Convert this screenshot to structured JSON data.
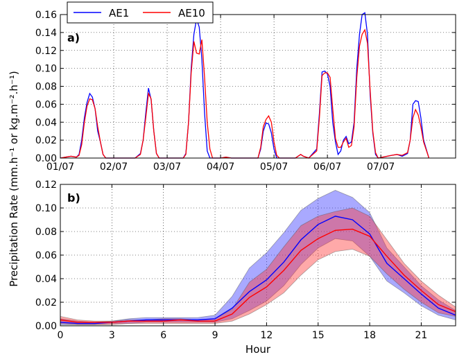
{
  "chart_data": [
    {
      "type": "line",
      "panel_label": "a)",
      "title": "",
      "xlabel": "",
      "ylabel": "Precipitation Rate (mm.h⁻¹ or kg.m⁻².h⁻¹)",
      "xlim": [
        0,
        7.4
      ],
      "ylim": [
        0,
        0.16
      ],
      "yticks": [
        "0.00",
        "0.02",
        "0.04",
        "0.06",
        "0.08",
        "0.10",
        "0.12",
        "0.14",
        "0.16"
      ],
      "xticks": [
        {
          "v": 0,
          "label": "01/07"
        },
        {
          "v": 1,
          "label": "02/07"
        },
        {
          "v": 2,
          "label": "03/07"
        },
        {
          "v": 3,
          "label": "04/07"
        },
        {
          "v": 4,
          "label": "05/07"
        },
        {
          "v": 5,
          "label": "06/07"
        },
        {
          "v": 6,
          "label": "07/07"
        }
      ],
      "grid": true,
      "legend": {
        "placement": "top-left",
        "entries": [
          {
            "name": "AE1",
            "color": "#0000ff"
          },
          {
            "name": "AE10",
            "color": "#ff0000"
          }
        ]
      },
      "series": [
        {
          "name": "AE1",
          "color": "#0000ff",
          "points": [
            [
              0,
              0
            ],
            [
              0.1,
              0.001
            ],
            [
              0.2,
              0.002
            ],
            [
              0.3,
              0.001
            ],
            [
              0.35,
              0.004
            ],
            [
              0.4,
              0.02
            ],
            [
              0.45,
              0.045
            ],
            [
              0.5,
              0.062
            ],
            [
              0.55,
              0.072
            ],
            [
              0.6,
              0.068
            ],
            [
              0.65,
              0.055
            ],
            [
              0.7,
              0.03
            ],
            [
              0.75,
              0.018
            ],
            [
              0.8,
              0.004
            ],
            [
              0.85,
              0
            ],
            [
              1.4,
              0
            ],
            [
              1.5,
              0.005
            ],
            [
              1.55,
              0.02
            ],
            [
              1.6,
              0.05
            ],
            [
              1.65,
              0.078
            ],
            [
              1.7,
              0.065
            ],
            [
              1.75,
              0.03
            ],
            [
              1.8,
              0.005
            ],
            [
              1.85,
              0
            ],
            [
              2.3,
              0
            ],
            [
              2.35,
              0.005
            ],
            [
              2.4,
              0.04
            ],
            [
              2.45,
              0.1
            ],
            [
              2.5,
              0.138
            ],
            [
              2.55,
              0.155
            ],
            [
              2.6,
              0.146
            ],
            [
              2.65,
              0.11
            ],
            [
              2.7,
              0.05
            ],
            [
              2.75,
              0.008
            ],
            [
              2.8,
              0
            ],
            [
              3.0,
              0
            ],
            [
              3.1,
              0.001
            ],
            [
              3.2,
              0
            ],
            [
              3.7,
              0
            ],
            [
              3.75,
              0.01
            ],
            [
              3.8,
              0.03
            ],
            [
              3.85,
              0.039
            ],
            [
              3.9,
              0.038
            ],
            [
              3.95,
              0.028
            ],
            [
              4.0,
              0.01
            ],
            [
              4.05,
              0
            ],
            [
              4.4,
              0
            ],
            [
              4.5,
              0.004
            ],
            [
              4.55,
              0.002
            ],
            [
              4.65,
              0
            ],
            [
              4.8,
              0.01
            ],
            [
              4.85,
              0.05
            ],
            [
              4.9,
              0.096
            ],
            [
              4.95,
              0.097
            ],
            [
              5.0,
              0.094
            ],
            [
              5.05,
              0.08
            ],
            [
              5.1,
              0.04
            ],
            [
              5.15,
              0.018
            ],
            [
              5.2,
              0.004
            ],
            [
              5.25,
              0.008
            ],
            [
              5.3,
              0.02
            ],
            [
              5.35,
              0.024
            ],
            [
              5.4,
              0.016
            ],
            [
              5.45,
              0.018
            ],
            [
              5.5,
              0.04
            ],
            [
              5.55,
              0.1
            ],
            [
              5.6,
              0.138
            ],
            [
              5.65,
              0.16
            ],
            [
              5.7,
              0.162
            ],
            [
              5.75,
              0.138
            ],
            [
              5.8,
              0.07
            ],
            [
              5.85,
              0.028
            ],
            [
              5.9,
              0.004
            ],
            [
              5.95,
              0
            ],
            [
              6.2,
              0.003
            ],
            [
              6.3,
              0.004
            ],
            [
              6.4,
              0.002
            ],
            [
              6.5,
              0.005
            ],
            [
              6.55,
              0.02
            ],
            [
              6.6,
              0.06
            ],
            [
              6.65,
              0.064
            ],
            [
              6.7,
              0.063
            ],
            [
              6.75,
              0.045
            ],
            [
              6.8,
              0.02
            ],
            [
              6.9,
              0
            ]
          ]
        },
        {
          "name": "AE10",
          "color": "#ff0000",
          "points": [
            [
              0,
              0
            ],
            [
              0.1,
              0.001
            ],
            [
              0.2,
              0.002
            ],
            [
              0.3,
              0.001
            ],
            [
              0.35,
              0.003
            ],
            [
              0.4,
              0.015
            ],
            [
              0.45,
              0.04
            ],
            [
              0.5,
              0.058
            ],
            [
              0.55,
              0.066
            ],
            [
              0.6,
              0.065
            ],
            [
              0.65,
              0.055
            ],
            [
              0.7,
              0.035
            ],
            [
              0.75,
              0.018
            ],
            [
              0.8,
              0.004
            ],
            [
              0.85,
              0
            ],
            [
              1.4,
              0
            ],
            [
              1.5,
              0.004
            ],
            [
              1.55,
              0.02
            ],
            [
              1.6,
              0.045
            ],
            [
              1.65,
              0.072
            ],
            [
              1.7,
              0.066
            ],
            [
              1.75,
              0.03
            ],
            [
              1.8,
              0.005
            ],
            [
              1.85,
              0
            ],
            [
              2.3,
              0
            ],
            [
              2.35,
              0.004
            ],
            [
              2.4,
              0.04
            ],
            [
              2.45,
              0.095
            ],
            [
              2.5,
              0.13
            ],
            [
              2.55,
              0.117
            ],
            [
              2.6,
              0.116
            ],
            [
              2.65,
              0.132
            ],
            [
              2.7,
              0.09
            ],
            [
              2.75,
              0.04
            ],
            [
              2.8,
              0.01
            ],
            [
              2.85,
              0
            ],
            [
              3.0,
              0
            ],
            [
              3.1,
              0.001
            ],
            [
              3.2,
              0
            ],
            [
              3.7,
              0
            ],
            [
              3.75,
              0.012
            ],
            [
              3.8,
              0.035
            ],
            [
              3.85,
              0.043
            ],
            [
              3.9,
              0.047
            ],
            [
              3.95,
              0.04
            ],
            [
              4.0,
              0.018
            ],
            [
              4.05,
              0.003
            ],
            [
              4.1,
              0
            ],
            [
              4.4,
              0
            ],
            [
              4.5,
              0.004
            ],
            [
              4.55,
              0.002
            ],
            [
              4.65,
              0
            ],
            [
              4.8,
              0.008
            ],
            [
              4.85,
              0.045
            ],
            [
              4.9,
              0.092
            ],
            [
              4.95,
              0.095
            ],
            [
              5.0,
              0.095
            ],
            [
              5.05,
              0.09
            ],
            [
              5.1,
              0.055
            ],
            [
              5.15,
              0.022
            ],
            [
              5.2,
              0.012
            ],
            [
              5.25,
              0.012
            ],
            [
              5.3,
              0.018
            ],
            [
              5.35,
              0.022
            ],
            [
              5.4,
              0.012
            ],
            [
              5.45,
              0.014
            ],
            [
              5.5,
              0.035
            ],
            [
              5.55,
              0.09
            ],
            [
              5.6,
              0.125
            ],
            [
              5.65,
              0.138
            ],
            [
              5.7,
              0.143
            ],
            [
              5.75,
              0.128
            ],
            [
              5.8,
              0.075
            ],
            [
              5.85,
              0.03
            ],
            [
              5.9,
              0.006
            ],
            [
              5.95,
              0
            ],
            [
              6.2,
              0.003
            ],
            [
              6.3,
              0.004
            ],
            [
              6.4,
              0.003
            ],
            [
              6.5,
              0.006
            ],
            [
              6.55,
              0.02
            ],
            [
              6.6,
              0.045
            ],
            [
              6.65,
              0.054
            ],
            [
              6.7,
              0.048
            ],
            [
              6.75,
              0.035
            ],
            [
              6.8,
              0.018
            ],
            [
              6.9,
              0
            ]
          ]
        }
      ]
    },
    {
      "type": "area",
      "panel_label": "b)",
      "title": "",
      "xlabel": "Hour",
      "ylabel": "Precipitation Rate (mm.h⁻¹ or kg.m⁻².h⁻¹)",
      "xlim": [
        0,
        23
      ],
      "ylim": [
        0,
        0.12
      ],
      "xticks": [
        "0",
        "3",
        "6",
        "9",
        "12",
        "15",
        "18",
        "21"
      ],
      "yticks": [
        "0.00",
        "0.02",
        "0.04",
        "0.06",
        "0.08",
        "0.10",
        "0.12"
      ],
      "grid": true,
      "x": [
        0,
        1,
        2,
        3,
        4,
        5,
        6,
        7,
        8,
        9,
        10,
        11,
        12,
        13,
        14,
        15,
        16,
        17,
        18,
        19,
        20,
        21,
        22,
        23
      ],
      "series": [
        {
          "name": "AE1",
          "color": "#0000ff",
          "band_color": "#3333ff",
          "mean": [
            0.003,
            0.002,
            0.002,
            0.003,
            0.004,
            0.005,
            0.005,
            0.005,
            0.005,
            0.006,
            0.015,
            0.029,
            0.039,
            0.054,
            0.073,
            0.086,
            0.093,
            0.09,
            0.078,
            0.053,
            0.04,
            0.027,
            0.015,
            0.009
          ],
          "upper": [
            0.006,
            0.004,
            0.003,
            0.004,
            0.006,
            0.007,
            0.007,
            0.007,
            0.007,
            0.009,
            0.025,
            0.049,
            0.062,
            0.079,
            0.098,
            0.108,
            0.115,
            0.109,
            0.096,
            0.066,
            0.05,
            0.034,
            0.022,
            0.013
          ],
          "lower": [
            0.001,
            0.001,
            0.001,
            0.002,
            0.002,
            0.003,
            0.003,
            0.003,
            0.003,
            0.003,
            0.006,
            0.013,
            0.021,
            0.034,
            0.052,
            0.066,
            0.074,
            0.072,
            0.059,
            0.038,
            0.028,
            0.017,
            0.009,
            0.005
          ]
        },
        {
          "name": "AE10",
          "color": "#ff0000",
          "band_color": "#ff3333",
          "mean": [
            0.005,
            0.003,
            0.003,
            0.003,
            0.004,
            0.004,
            0.004,
            0.005,
            0.004,
            0.004,
            0.01,
            0.024,
            0.033,
            0.047,
            0.064,
            0.074,
            0.081,
            0.082,
            0.076,
            0.059,
            0.043,
            0.03,
            0.018,
            0.012
          ],
          "upper": [
            0.008,
            0.005,
            0.004,
            0.004,
            0.005,
            0.005,
            0.006,
            0.006,
            0.005,
            0.006,
            0.014,
            0.037,
            0.048,
            0.067,
            0.085,
            0.093,
            0.097,
            0.1,
            0.093,
            0.073,
            0.053,
            0.038,
            0.026,
            0.016
          ],
          "lower": [
            0.002,
            0.001,
            0.001,
            0.001,
            0.002,
            0.002,
            0.002,
            0.002,
            0.002,
            0.002,
            0.004,
            0.01,
            0.018,
            0.028,
            0.043,
            0.056,
            0.063,
            0.065,
            0.059,
            0.044,
            0.031,
            0.02,
            0.011,
            0.008
          ]
        }
      ]
    }
  ],
  "shared_ylabel": "Precipitation Rate (mm.h⁻¹ or kg.m⁻².h⁻¹)"
}
